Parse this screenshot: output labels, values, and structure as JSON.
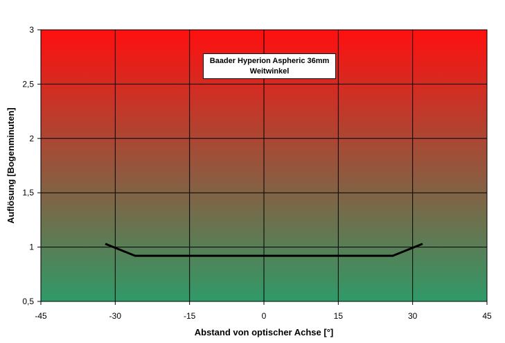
{
  "chart_data": {
    "type": "line",
    "title": "Baader Hyperion Aspheric 36mm",
    "subtitle": "Weitwinkel",
    "xlabel": "Abstand von optischer Achse [°]",
    "ylabel": "Auflösung [Bogenminuten]",
    "xlim": [
      -45,
      45
    ],
    "ylim": [
      0.5,
      3
    ],
    "xticks": [
      -45,
      -30,
      -15,
      0,
      15,
      30,
      45
    ],
    "xtick_labels": [
      "-45",
      "-30",
      "-15",
      "0",
      "15",
      "30",
      "45"
    ],
    "yticks": [
      0.5,
      1,
      1.5,
      2,
      2.5,
      3
    ],
    "ytick_labels": [
      "0,5",
      "1",
      "1,5",
      "2",
      "2,5",
      "3"
    ],
    "grid": true,
    "background_gradient": {
      "top": "#ff0f0f",
      "bottom": "#2f9a68"
    },
    "series": [
      {
        "color": "#000000",
        "x": [
          -32,
          -26,
          26,
          32
        ],
        "y": [
          1.03,
          0.92,
          0.92,
          1.03
        ]
      }
    ]
  }
}
